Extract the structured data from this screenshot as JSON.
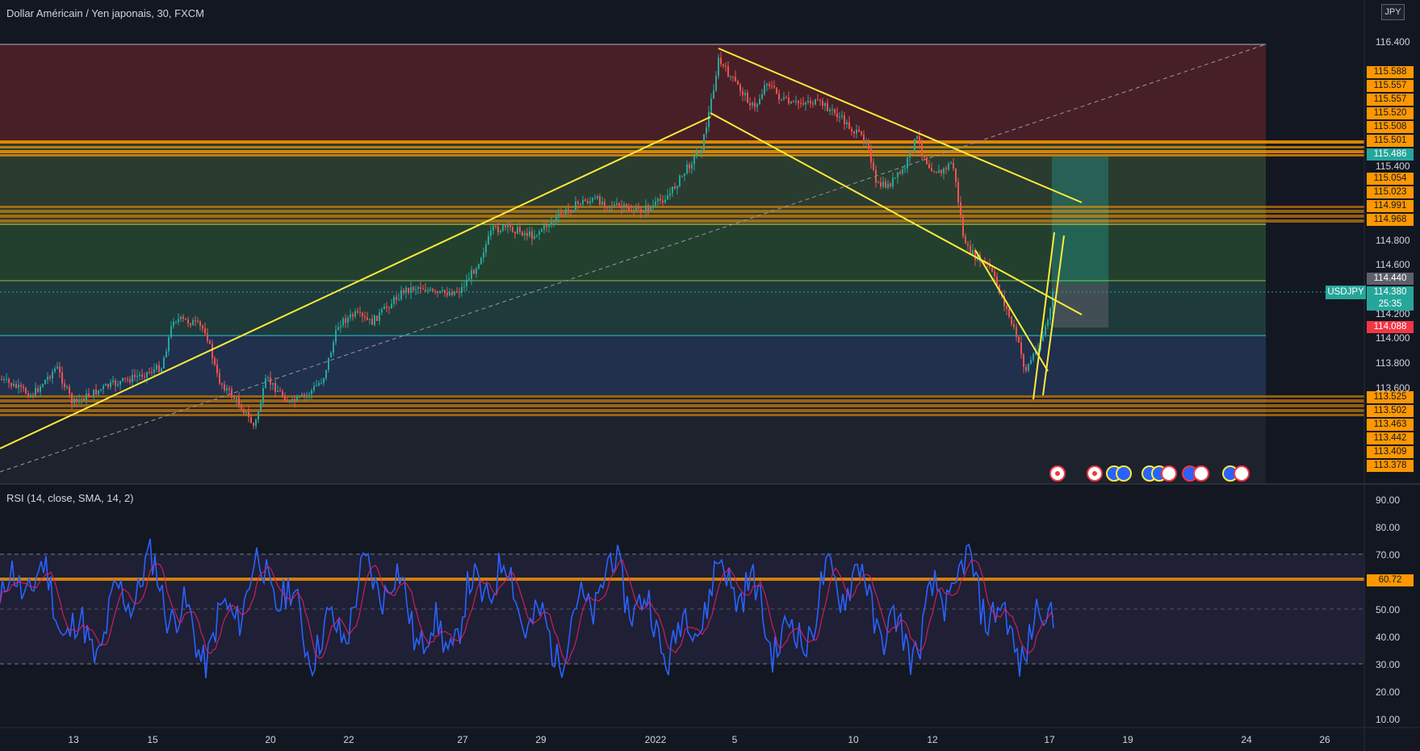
{
  "header": {
    "symbol_title": "Dollar Américain / Yen japonais, 30, FXCM",
    "currency_tag": "JPY"
  },
  "indicator": {
    "label": "RSI (14, close, SMA, 14, 2)",
    "value_badge": "60.72"
  },
  "price_axis": {
    "labels": [
      "116.400",
      "115.400",
      "114.800",
      "114.600",
      "114.200",
      "114.000",
      "113.800",
      "113.600"
    ]
  },
  "rsi_axis": {
    "labels": [
      "90.00",
      "80.00",
      "70.00",
      "50.00",
      "40.00",
      "30.00",
      "20.00",
      "10.00"
    ]
  },
  "x_axis": {
    "labels": [
      "13",
      "15",
      "20",
      "22",
      "27",
      "29",
      "2022",
      "5",
      "10",
      "12",
      "17",
      "19",
      "24",
      "26"
    ]
  },
  "price_badges": {
    "upper": [
      "115.588",
      "115.557",
      "115.557",
      "115.520",
      "115.508",
      "115.501"
    ],
    "teal_level": "115.486",
    "mid": [
      "115.054",
      "115.023",
      "114.991",
      "114.968"
    ],
    "grey_level": "114.440",
    "last_symbol": "USDJPY",
    "last_price": "114.380",
    "countdown": "25:35",
    "red_level": "114.088",
    "lower": [
      "113.525",
      "113.502",
      "113.463",
      "113.442",
      "113.409",
      "113.378"
    ]
  },
  "colors": {
    "background": "#131722",
    "trendline": "#ffeb3b",
    "level_orange": "#ff9800",
    "teal": "#26a69a",
    "red": "#f23645",
    "rsi_line": "#2962ff",
    "rsi_ma": "#e91e63"
  },
  "icons": [
    "event-flag-japan-icon",
    "event-flag-usa-icon"
  ]
}
